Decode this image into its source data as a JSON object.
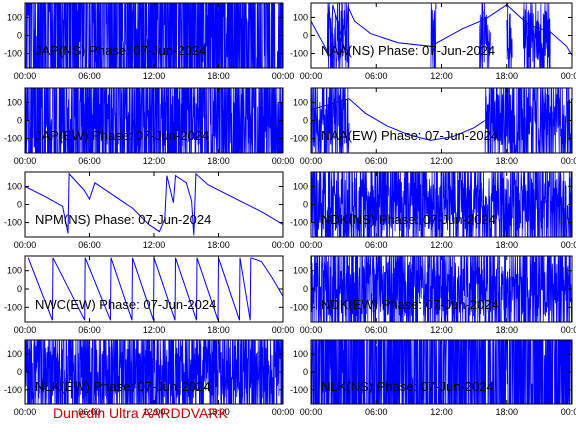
{
  "brand_text": "Dunedin Ultra AARDDVARK",
  "colors": {
    "trace": "#0000ff",
    "axis": "#000000",
    "brand": "#cc0000",
    "background": "#ffffff"
  },
  "chart_data": [
    {
      "type": "line",
      "title": "JAP(NS) Phase: 07-Jun-2024",
      "xlabel": "",
      "ylabel": "",
      "xlim": [
        "00:00",
        "24:00"
      ],
      "x_ticks": [
        "00:00",
        "06:00",
        "12:00",
        "18:00",
        "00:00"
      ],
      "y_ticks": [
        100,
        0,
        -100
      ],
      "ylim": [
        -180,
        180
      ],
      "pattern": "noise",
      "fill": 0.9,
      "segments": []
    },
    {
      "type": "line",
      "title": "NAA(NS) Phase: 07-Jun-2024",
      "xlabel": "",
      "ylabel": "",
      "xlim": [
        "00:00",
        "24:00"
      ],
      "x_ticks": [
        "00:00",
        "06:00",
        "12:00",
        "18:00",
        "00:00"
      ],
      "y_ticks": [
        100,
        0,
        -100
      ],
      "ylim": [
        -180,
        180
      ],
      "pattern": "mixed",
      "fill": 0.3,
      "noise_ranges": [
        [
          1.5,
          3.5
        ],
        [
          11.0,
          11.5
        ],
        [
          15.5,
          16.5
        ],
        [
          18.0,
          18.5
        ],
        [
          19.5,
          22.0
        ]
      ],
      "segments": [
        [
          0.0,
          80
        ],
        [
          1.8,
          -120
        ],
        [
          2.0,
          170
        ],
        [
          3.2,
          -100
        ],
        [
          3.4,
          160
        ],
        [
          4.0,
          80
        ],
        [
          5.5,
          10
        ],
        [
          8.0,
          -40
        ],
        [
          11.0,
          -60
        ],
        [
          14.0,
          40
        ],
        [
          16.0,
          90
        ],
        [
          17.5,
          150
        ],
        [
          18.0,
          170
        ],
        [
          20.0,
          60
        ],
        [
          22.0,
          20
        ],
        [
          23.5,
          -60
        ],
        [
          24.0,
          -110
        ]
      ]
    },
    {
      "type": "line",
      "title": "JAP(EW) Phase: 07-Jun-2024",
      "xlabel": "",
      "ylabel": "",
      "xlim": [
        "00:00",
        "24:00"
      ],
      "x_ticks": [
        "00:00",
        "06:00",
        "12:00",
        "18:00",
        "00:00"
      ],
      "y_ticks": [
        100,
        0,
        -100
      ],
      "ylim": [
        -180,
        180
      ],
      "pattern": "noise",
      "fill": 0.7,
      "segments": []
    },
    {
      "type": "line",
      "title": "NAA(EW) Phase: 07-Jun-2024",
      "xlabel": "",
      "ylabel": "",
      "xlim": [
        "00:00",
        "24:00"
      ],
      "x_ticks": [
        "00:00",
        "06:00",
        "12:00",
        "18:00",
        "00:00"
      ],
      "y_ticks": [
        100,
        0,
        -100
      ],
      "ylim": [
        -180,
        180
      ],
      "pattern": "mixed",
      "fill": 0.4,
      "noise_ranges": [
        [
          0.0,
          3.5
        ],
        [
          16.0,
          24.0
        ]
      ],
      "segments": [
        [
          0.0,
          60
        ],
        [
          3.5,
          120
        ],
        [
          5.0,
          40
        ],
        [
          7.0,
          -30
        ],
        [
          9.0,
          -80
        ],
        [
          11.0,
          -110
        ],
        [
          13.0,
          -90
        ],
        [
          15.0,
          -40
        ],
        [
          16.0,
          0
        ]
      ]
    },
    {
      "type": "line",
      "title": "NPM(NS) Phase: 07-Jun-2024",
      "xlabel": "",
      "ylabel": "",
      "xlim": [
        "00:00",
        "24:00"
      ],
      "x_ticks": [
        "00:00",
        "06:00",
        "12:00",
        "18:00",
        "00:00"
      ],
      "y_ticks": [
        100,
        0,
        -100
      ],
      "ylim": [
        -180,
        180
      ],
      "pattern": "line",
      "fill": 0,
      "segments": [
        [
          0.0,
          100
        ],
        [
          2.0,
          40
        ],
        [
          3.5,
          -10
        ],
        [
          4.0,
          -160
        ],
        [
          4.1,
          170
        ],
        [
          5.5,
          80
        ],
        [
          6.0,
          30
        ],
        [
          6.5,
          120
        ],
        [
          8.0,
          60
        ],
        [
          10.0,
          -20
        ],
        [
          11.5,
          -110
        ],
        [
          12.5,
          -150
        ],
        [
          13.0,
          -80
        ],
        [
          13.2,
          160
        ],
        [
          13.8,
          10
        ],
        [
          14.0,
          160
        ],
        [
          15.0,
          120
        ],
        [
          15.5,
          20
        ],
        [
          15.7,
          -170
        ],
        [
          15.9,
          170
        ],
        [
          17.0,
          110
        ],
        [
          18.0,
          80
        ],
        [
          20.0,
          20
        ],
        [
          22.0,
          -40
        ],
        [
          24.0,
          -110
        ]
      ]
    },
    {
      "type": "line",
      "title": "NDK(NS) Phase: 07-Jun-2024",
      "xlabel": "",
      "ylabel": "",
      "xlim": [
        "00:00",
        "24:00"
      ],
      "x_ticks": [
        "00:00",
        "06:00",
        "12:00",
        "18:00",
        "00:00"
      ],
      "y_ticks": [
        100,
        0,
        -100
      ],
      "ylim": [
        -180,
        180
      ],
      "pattern": "noise",
      "fill": 0.4,
      "segments": []
    },
    {
      "type": "line",
      "title": "NWC(EW) Phase: 07-Jun-2024",
      "xlabel": "",
      "ylabel": "",
      "xlim": [
        "00:00",
        "24:00"
      ],
      "x_ticks": [
        "00:00",
        "06:00",
        "12:00",
        "18:00",
        "00:00"
      ],
      "y_ticks": [
        100,
        0,
        -100
      ],
      "ylim": [
        -180,
        180
      ],
      "pattern": "sawtooth",
      "fill": 0,
      "saw_starts": [
        0.3,
        2.6,
        5.6,
        8.0,
        10.0,
        12.0,
        14.0,
        16.0,
        18.0,
        20.0
      ],
      "segments": [
        [
          21.0,
          170
        ],
        [
          22.0,
          150
        ],
        [
          23.0,
          60
        ],
        [
          24.0,
          -40
        ]
      ]
    },
    {
      "type": "line",
      "title": "NDK(EW) Phase: 07-Jun-2024",
      "xlabel": "",
      "ylabel": "",
      "xlim": [
        "00:00",
        "24:00"
      ],
      "x_ticks": [
        "00:00",
        "06:00",
        "12:00",
        "18:00",
        "00:00"
      ],
      "y_ticks": [
        100,
        0,
        -100
      ],
      "ylim": [
        -180,
        180
      ],
      "pattern": "noise",
      "fill": 0.4,
      "segments": []
    },
    {
      "type": "line",
      "title": "NLK(EW) Phase: 07-Jun-2024",
      "xlabel": "",
      "ylabel": "",
      "xlim": [
        "00:00",
        "24:00"
      ],
      "x_ticks": [
        "00:00",
        "06:00",
        "12:00",
        "18:00",
        "00:00"
      ],
      "y_ticks": [
        100,
        0,
        -100
      ],
      "ylim": [
        -180,
        180
      ],
      "pattern": "noise",
      "fill": 0.5,
      "segments": []
    },
    {
      "type": "line",
      "title": "NLK(NS) Phase: 07-Jun-2024",
      "xlabel": "",
      "ylabel": "",
      "xlim": [
        "00:00",
        "24:00"
      ],
      "x_ticks": [
        "00:00",
        "06:00",
        "12:00",
        "18:00",
        "00:00"
      ],
      "y_ticks": [
        100,
        0,
        -100
      ],
      "ylim": [
        -180,
        180
      ],
      "pattern": "noise",
      "fill": 0.95,
      "segments": []
    }
  ]
}
